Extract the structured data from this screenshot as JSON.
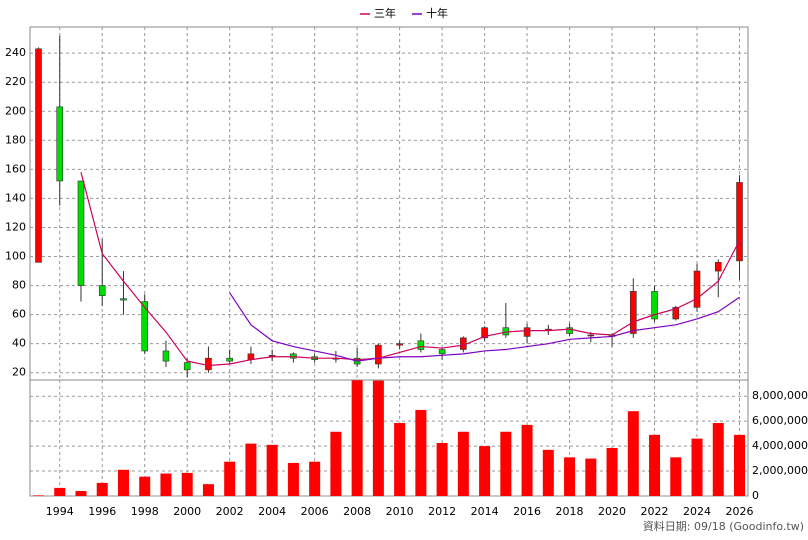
{
  "chart_data": [
    {
      "type": "candlestick",
      "x": [
        1993,
        1994,
        1995,
        1996,
        1997,
        1998,
        1999,
        2000,
        2001,
        2002,
        2003,
        2004,
        2005,
        2006,
        2007,
        2008,
        2009,
        2010,
        2011,
        2012,
        2013,
        2014,
        2015,
        2016,
        2017,
        2018,
        2019,
        2020,
        2021,
        2022,
        2023,
        2024,
        2025,
        2026
      ],
      "open": [
        96,
        203,
        152,
        80,
        71,
        69,
        35,
        27,
        22,
        30,
        29,
        31,
        33,
        31,
        30,
        30,
        26,
        39,
        42,
        36,
        36,
        44,
        51,
        45,
        49,
        51,
        46,
        46,
        47,
        76,
        57,
        65,
        90,
        97
      ],
      "high": [
        244,
        252,
        152,
        112,
        90,
        74,
        42,
        30,
        38,
        36,
        38,
        36,
        34,
        33,
        35,
        37,
        40,
        42,
        47,
        37,
        45,
        52,
        68,
        54,
        53,
        54,
        48,
        47,
        85,
        80,
        66,
        95,
        98,
        156
      ],
      "low": [
        96,
        135,
        69,
        66,
        60,
        33,
        24,
        17,
        20,
        26,
        26,
        28,
        27,
        27,
        27,
        24,
        23,
        36,
        34,
        29,
        34,
        42,
        44,
        40,
        46,
        45,
        41,
        38,
        44,
        55,
        56,
        62,
        72,
        84
      ],
      "close": [
        243,
        152,
        80,
        73,
        70,
        35,
        28,
        22,
        30,
        28,
        33,
        32,
        30,
        29,
        30,
        26,
        39,
        40,
        36,
        33,
        44,
        51,
        46,
        51,
        50,
        47,
        46,
        45,
        76,
        57,
        65,
        90,
        96,
        151
      ],
      "up_color": "#ff0000",
      "down_color": "#00dd00",
      "series": [
        {
          "name": "三年",
          "color": "#d0005a",
          "values": [
            null,
            null,
            158,
            102,
            83,
            65,
            48,
            28,
            25,
            26,
            29,
            31,
            31,
            30,
            30,
            29,
            30,
            34,
            38,
            37,
            39,
            45,
            48,
            49,
            49,
            50,
            47,
            46,
            55,
            60,
            64,
            71,
            83,
            111
          ]
        },
        {
          "name": "十年",
          "color": "#8000c0",
          "values": [
            null,
            null,
            null,
            null,
            null,
            null,
            null,
            null,
            null,
            75,
            53,
            42,
            38,
            35,
            32,
            28,
            30,
            31,
            31,
            32,
            33,
            35,
            36,
            38,
            40,
            43,
            44,
            45,
            49,
            51,
            53,
            57,
            62,
            72
          ]
        }
      ],
      "xlim": [
        1992.6,
        2026.4
      ],
      "ylim": [
        15,
        258
      ],
      "yticks": [
        20,
        40,
        60,
        80,
        100,
        120,
        140,
        160,
        180,
        200,
        220,
        240
      ],
      "grid": true,
      "legend": "top"
    },
    {
      "type": "bar",
      "x": [
        1993,
        1994,
        1995,
        1996,
        1997,
        1998,
        1999,
        2000,
        2001,
        2002,
        2003,
        2004,
        2005,
        2006,
        2007,
        2008,
        2009,
        2010,
        2011,
        2012,
        2013,
        2014,
        2015,
        2016,
        2017,
        2018,
        2019,
        2020,
        2021,
        2022,
        2023,
        2024,
        2025,
        2026
      ],
      "values": [
        50000,
        650000,
        400000,
        1050000,
        2100000,
        1550000,
        1800000,
        1850000,
        950000,
        2750000,
        4200000,
        4100000,
        2650000,
        2750000,
        5150000,
        9280000,
        9250000,
        5850000,
        6900000,
        4250000,
        5150000,
        4000000,
        5150000,
        5700000,
        3700000,
        3100000,
        3000000,
        3850000,
        6800000,
        4900000,
        3100000,
        4600000,
        5850000,
        4900000
      ],
      "color": "#ff0000",
      "xlim": [
        1992.6,
        2026.4
      ],
      "ylim": [
        0,
        9300000
      ],
      "xticks": [
        1994,
        1996,
        1998,
        2000,
        2002,
        2004,
        2006,
        2008,
        2010,
        2012,
        2014,
        2016,
        2018,
        2020,
        2022,
        2024,
        2026
      ],
      "yticks": [
        0,
        {
          "value": 2000000,
          "label": "2,000,000"
        },
        {
          "value": 4000000,
          "label": "4,000,000"
        },
        {
          "value": 6000000,
          "label": "6,000,000"
        },
        {
          "value": 8000000,
          "label": "8,000,000"
        }
      ],
      "grid": true,
      "annotation": "資料日期: 09/18 (Goodinfo.tw)"
    }
  ]
}
